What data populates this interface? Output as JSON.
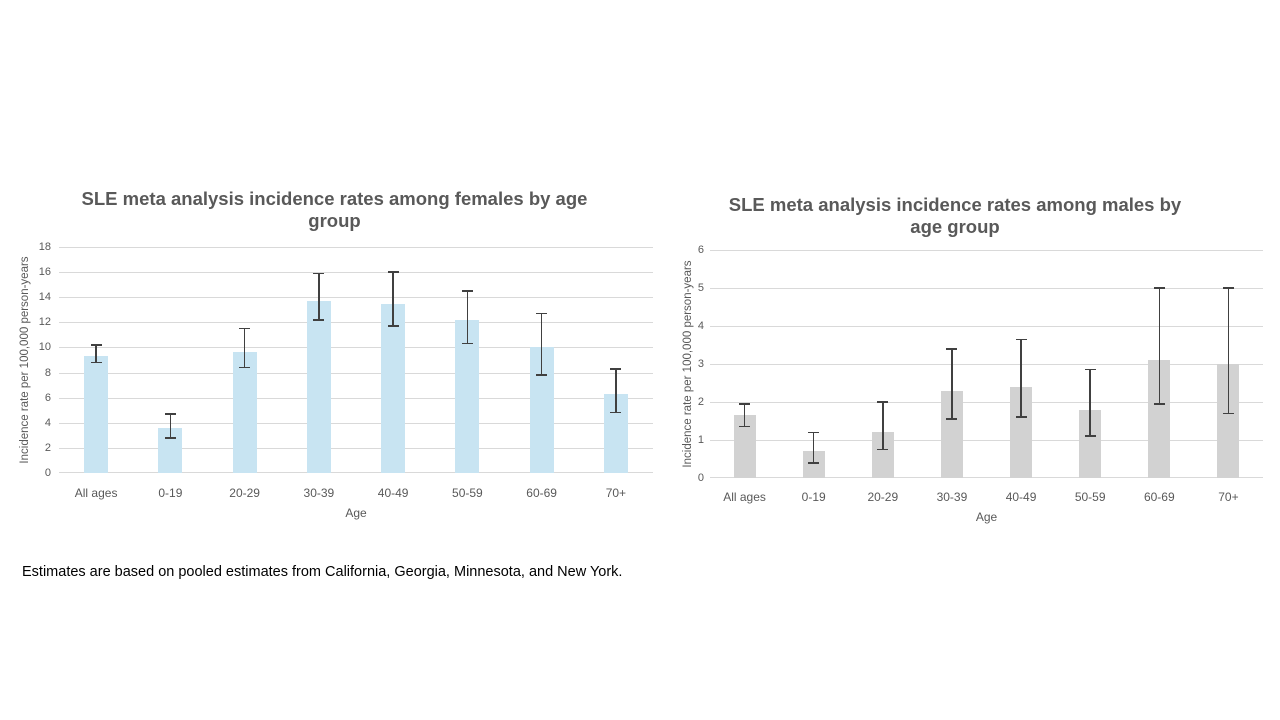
{
  "footnote": "Estimates are based on pooled estimates from California, Georgia, Minnesota, and New York.",
  "chart_data": [
    {
      "type": "bar",
      "title": "SLE meta analysis incidence rates among females by age group",
      "xlabel": "Age",
      "ylabel": "Incidence rate per 100,000 person-years",
      "categories": [
        "All ages",
        "0-19",
        "20-29",
        "30-39",
        "40-49",
        "50-59",
        "60-69",
        "70+"
      ],
      "values": [
        9.3,
        3.6,
        9.6,
        13.7,
        13.5,
        12.2,
        10.0,
        6.3
      ],
      "ci_low": [
        8.8,
        2.8,
        8.4,
        12.2,
        11.7,
        10.3,
        7.8,
        4.8
      ],
      "ci_high": [
        10.2,
        4.7,
        11.5,
        15.9,
        16.0,
        14.5,
        12.7,
        8.3
      ],
      "ylim": [
        0,
        18
      ],
      "yticks": [
        0,
        2,
        4,
        6,
        8,
        10,
        12,
        14,
        16,
        18
      ],
      "grid": true,
      "legend": false,
      "bar_color": "#C8E4F2",
      "error_color": "#404040"
    },
    {
      "type": "bar",
      "title": "SLE meta analysis incidence rates among males by age group",
      "xlabel": "Age",
      "ylabel": "Incidence rate per 100,000 person-years",
      "categories": [
        "All ages",
        "0-19",
        "20-29",
        "30-39",
        "40-49",
        "50-59",
        "60-69",
        "70+"
      ],
      "values": [
        1.65,
        0.7,
        1.2,
        2.3,
        2.4,
        1.8,
        3.1,
        3.0
      ],
      "ci_low": [
        1.35,
        0.4,
        0.75,
        1.55,
        1.6,
        1.1,
        1.95,
        1.7
      ],
      "ci_high": [
        1.95,
        1.2,
        2.0,
        3.4,
        3.65,
        2.85,
        5.0,
        5.0
      ],
      "ylim": [
        0,
        6
      ],
      "yticks": [
        0,
        1,
        2,
        3,
        4,
        5,
        6
      ],
      "grid": true,
      "legend": false,
      "bar_color": "#D2D2D2",
      "error_color": "#404040"
    }
  ],
  "theme": {
    "title_color": "#595959",
    "axis_text_color": "#595959",
    "gridline_color": "#D9D9D9",
    "background": "#FFFFFF",
    "footnote_color": "#000000"
  }
}
